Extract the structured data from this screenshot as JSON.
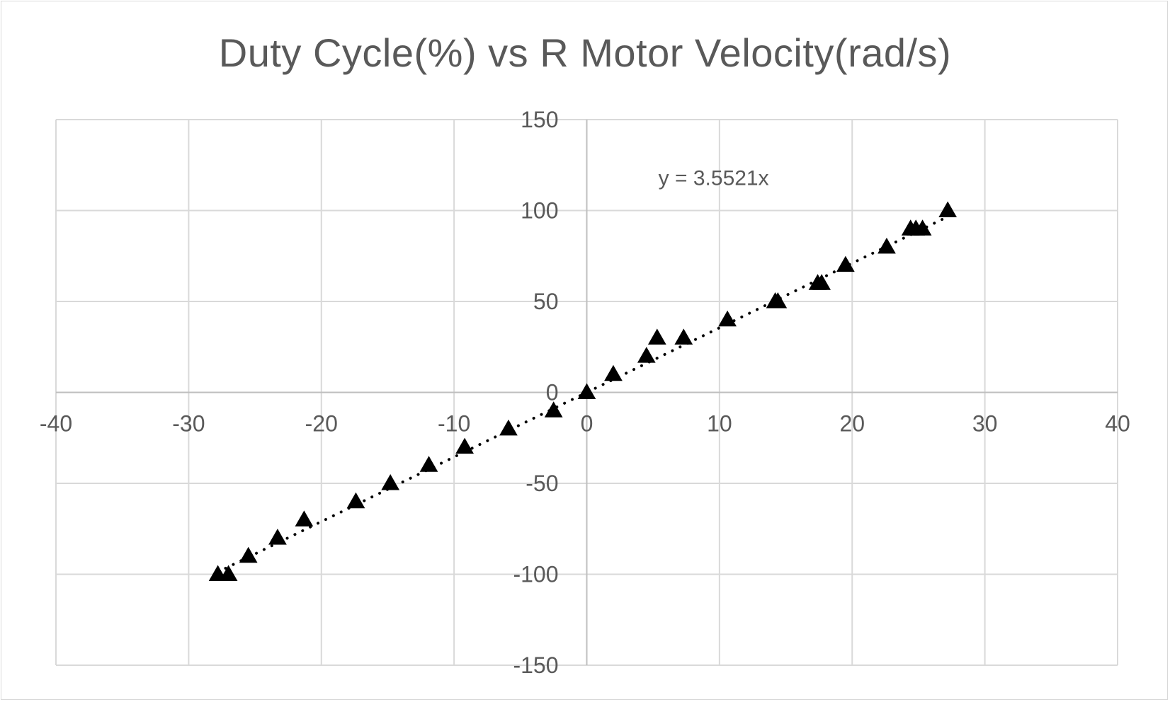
{
  "chart_data": {
    "type": "scatter",
    "title": "Duty Cycle(%) vs R Motor Velocity(rad/s)",
    "xlabel": "",
    "ylabel": "",
    "xlim": [
      -40,
      40
    ],
    "ylim": [
      -150,
      150
    ],
    "x_ticks": [
      -40,
      -30,
      -20,
      -10,
      0,
      10,
      20,
      30,
      40
    ],
    "y_ticks": [
      -150,
      -100,
      -50,
      0,
      50,
      100,
      150
    ],
    "grid": true,
    "legend": "none",
    "marker": "triangle",
    "marker_color": "#000000",
    "series": [
      {
        "points": [
          {
            "x": -27.8,
            "y": -100
          },
          {
            "x": -27.0,
            "y": -100
          },
          {
            "x": -25.5,
            "y": -90
          },
          {
            "x": -23.3,
            "y": -80
          },
          {
            "x": -21.3,
            "y": -70
          },
          {
            "x": -17.4,
            "y": -60
          },
          {
            "x": -14.8,
            "y": -50
          },
          {
            "x": -11.9,
            "y": -40
          },
          {
            "x": -9.2,
            "y": -30
          },
          {
            "x": -5.9,
            "y": -20
          },
          {
            "x": -2.5,
            "y": -10
          },
          {
            "x": 0.0,
            "y": 0
          },
          {
            "x": 2.0,
            "y": 10
          },
          {
            "x": 4.5,
            "y": 20
          },
          {
            "x": 5.3,
            "y": 30
          },
          {
            "x": 7.3,
            "y": 30
          },
          {
            "x": 10.6,
            "y": 40
          },
          {
            "x": 14.2,
            "y": 50
          },
          {
            "x": 14.4,
            "y": 50
          },
          {
            "x": 17.4,
            "y": 60
          },
          {
            "x": 17.7,
            "y": 60
          },
          {
            "x": 19.5,
            "y": 70
          },
          {
            "x": 22.6,
            "y": 80
          },
          {
            "x": 24.4,
            "y": 90
          },
          {
            "x": 24.8,
            "y": 90
          },
          {
            "x": 25.3,
            "y": 90
          },
          {
            "x": 27.2,
            "y": 100
          }
        ]
      }
    ],
    "trendline": {
      "type": "linear-through-origin",
      "slope": 3.5521,
      "style": "dotted",
      "color": "#000000",
      "equation_label": "y = 3.5521x"
    }
  },
  "colors": {
    "grid": "#d9d9d9",
    "axis": "#bfbfbf",
    "text": "#595959"
  }
}
